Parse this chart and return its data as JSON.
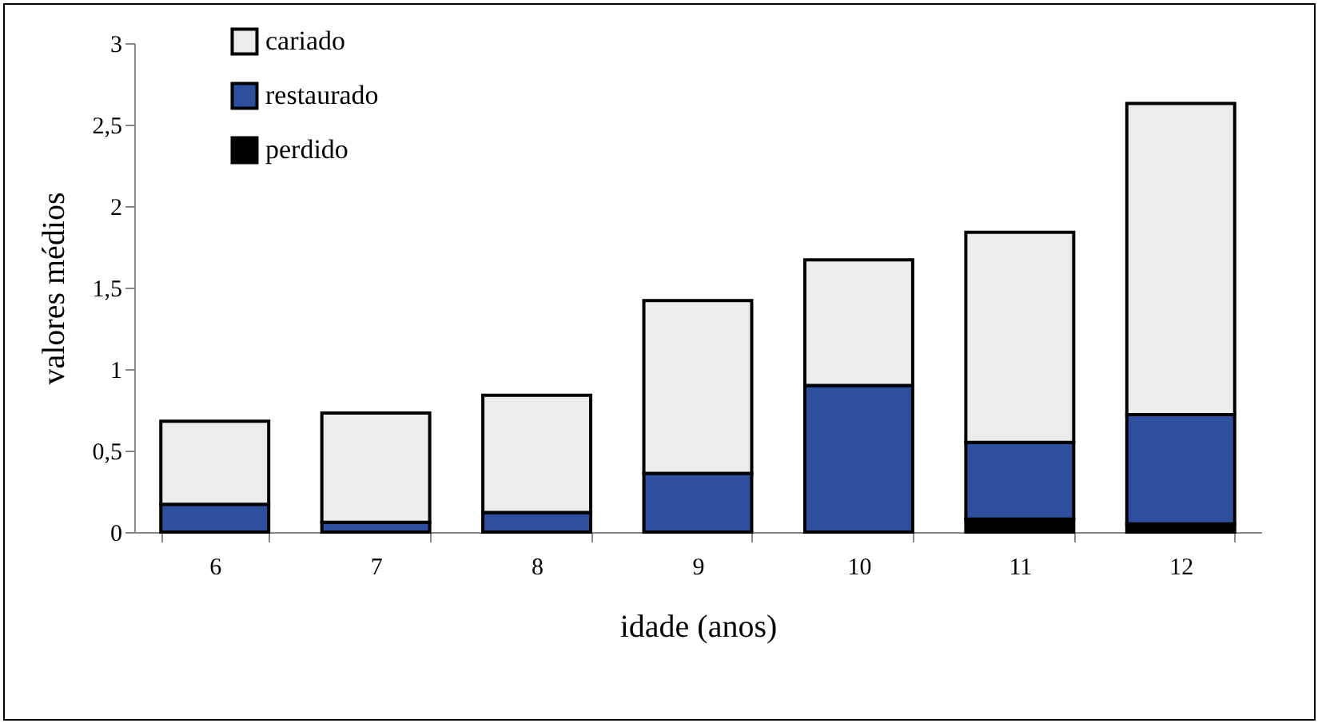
{
  "chart_data": {
    "type": "bar",
    "stacked": true,
    "xlabel": "idade (anos)",
    "ylabel": "valores médios",
    "categories": [
      "6",
      "7",
      "8",
      "9",
      "10",
      "11",
      "12"
    ],
    "series": [
      {
        "name": "perdido",
        "color": "#000000",
        "values": [
          0,
          0,
          0,
          0,
          0,
          0.08,
          0.05
        ]
      },
      {
        "name": "restaurado",
        "color": "#2e4f9e",
        "values": [
          0.17,
          0.06,
          0.12,
          0.36,
          0.9,
          0.47,
          0.67
        ]
      },
      {
        "name": "cariado",
        "color": "#ececec",
        "values": [
          0.51,
          0.67,
          0.72,
          1.06,
          0.77,
          1.29,
          1.91
        ]
      }
    ],
    "ylim": [
      0,
      3
    ],
    "yticks": [
      0,
      {
        "value": 0.5,
        "label": "0,5"
      },
      1,
      {
        "value": 1.5,
        "label": "1,5"
      },
      2,
      {
        "value": 2.5,
        "label": "2,5"
      },
      3
    ],
    "legend": "top left"
  }
}
